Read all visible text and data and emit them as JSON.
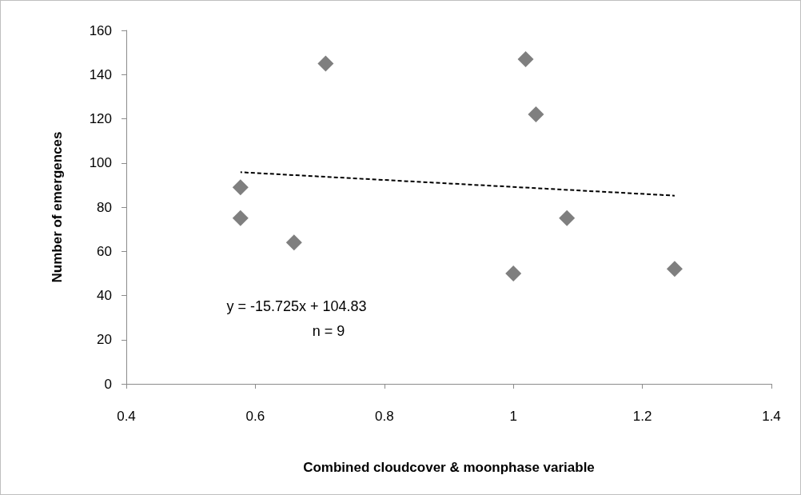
{
  "chart_data": {
    "type": "scatter",
    "xlabel": "Combined cloudcover & moonphase variable",
    "ylabel": "Number of emergences",
    "xlim": [
      0.4,
      1.4
    ],
    "xticks": [
      0.4,
      0.6,
      0.8,
      1,
      1.2,
      1.4
    ],
    "ylim": [
      0,
      160
    ],
    "yticks": [
      0,
      20,
      40,
      60,
      80,
      100,
      120,
      140,
      160
    ],
    "grid": false,
    "marker": "diamond",
    "series": [
      {
        "type": "scatter",
        "color": "#5f5f5f",
        "x": [
          0.577,
          0.577,
          0.66,
          0.709,
          1.019,
          1.035,
          1.083,
          1.0,
          1.25
        ],
        "values": [
          89,
          75,
          64,
          145,
          147,
          122,
          75,
          50,
          52
        ]
      },
      {
        "type": "line",
        "color": "#000000",
        "marker": "none",
        "line_style": "dashed",
        "x": [
          0.577,
          1.25
        ],
        "values": [
          95.8,
          85.2
        ]
      }
    ],
    "annotations": [
      "y = -15.725x + 104.83",
      "n = 9"
    ]
  }
}
